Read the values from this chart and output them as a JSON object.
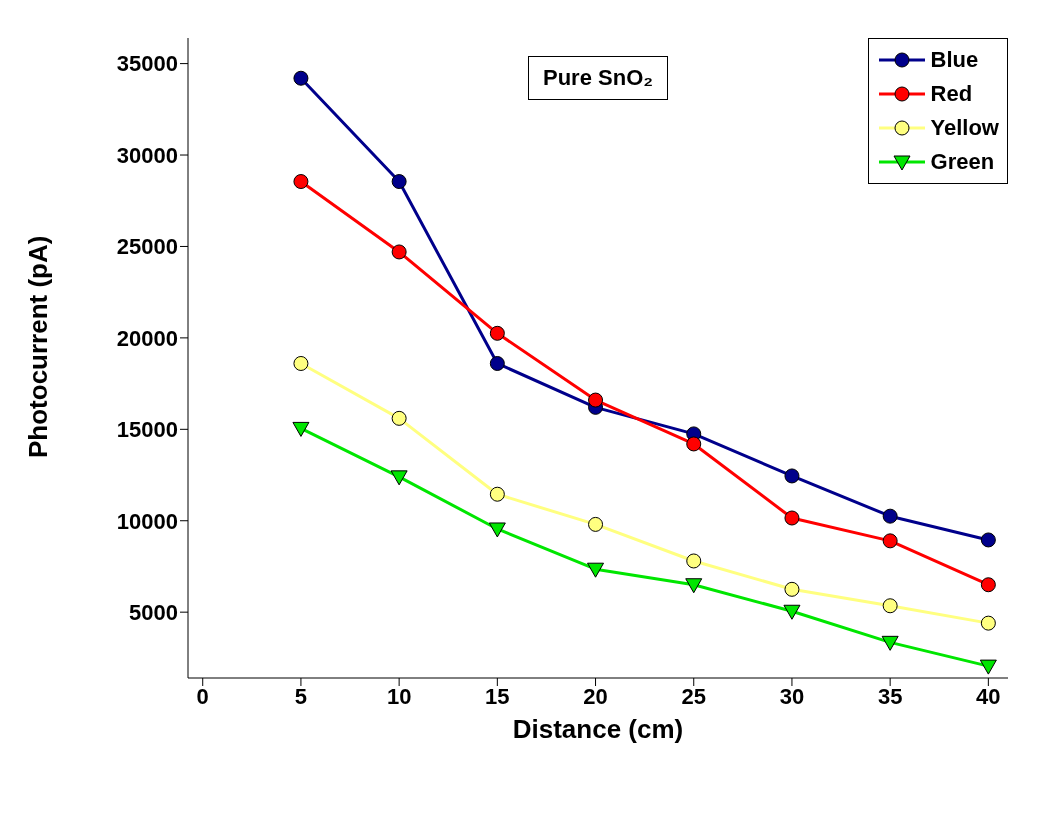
{
  "chart_data": {
    "type": "line",
    "xlabel": "Distance (cm)",
    "ylabel": "Photocurrent (pA)",
    "annotations": [
      "Pure SnO₂"
    ],
    "x": [
      5,
      10,
      15,
      20,
      25,
      30,
      35,
      40
    ],
    "xlim": [
      -0.75,
      41
    ],
    "xticks": [
      0,
      5,
      10,
      15,
      20,
      25,
      30,
      35,
      40
    ],
    "ylim": [
      1400,
      36400
    ],
    "yticks": [
      5000,
      10000,
      15000,
      20000,
      25000,
      30000,
      35000
    ],
    "grid": false,
    "legend": "top right",
    "series": [
      {
        "name": "Blue",
        "color": "#00008b",
        "marker": "circle",
        "values": [
          34200,
          28550,
          18600,
          16200,
          14750,
          12450,
          10250,
          8950
        ]
      },
      {
        "name": "Red",
        "color": "#ff0000",
        "marker": "circle",
        "values": [
          28550,
          24700,
          20250,
          16600,
          14200,
          10150,
          8900,
          6500
        ]
      },
      {
        "name": "Yellow",
        "color": "#ffff80",
        "marker": "circle",
        "values": [
          18600,
          15600,
          11450,
          9800,
          7800,
          6250,
          5350,
          4400
        ]
      },
      {
        "name": "Green",
        "color": "#00e600",
        "marker": "triangle",
        "values": [
          15050,
          12400,
          9550,
          7350,
          6500,
          5050,
          3350,
          2050
        ]
      }
    ]
  }
}
